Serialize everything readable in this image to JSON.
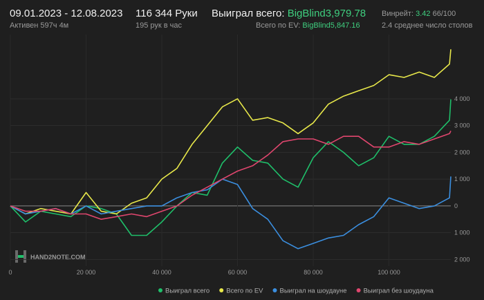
{
  "header": {
    "period": "09.01.2023 - 12.08.2023",
    "active": "Активен 597ч 4м",
    "hands": "116 344 Руки",
    "hands_per_hour": "195 рук в час",
    "won_label": "Выиграл всего:",
    "won_value": "BigBlind3,979.78",
    "ev_label": "Всего по EV:",
    "ev_value": "BigBlind5,847.16",
    "winrate_label": "Винрейт:",
    "winrate_value": "3.42",
    "winrate_unit": "66/100",
    "tables": "2.4 среднее число столов"
  },
  "chart_data": {
    "type": "line",
    "watermark": "HAND2NOTE.COM",
    "x": [
      0,
      4000,
      8000,
      12000,
      16000,
      20000,
      24000,
      28000,
      32000,
      36000,
      40000,
      44000,
      48000,
      52000,
      56000,
      60000,
      64000,
      68000,
      72000,
      76000,
      80000,
      84000,
      88000,
      92000,
      96000,
      100000,
      104000,
      108000,
      112000,
      116000,
      116344
    ],
    "xlim": [
      0,
      116344
    ],
    "xticks": [
      0,
      {
        "value": 20000,
        "label": "20 000"
      },
      {
        "value": 40000,
        "label": "40 000"
      },
      {
        "value": 60000,
        "label": "60 000"
      },
      {
        "value": 80000,
        "label": "80 000"
      },
      {
        "value": 100000,
        "label": "100 000"
      }
    ],
    "ylim": [
      -2250,
      6400
    ],
    "yticks": [
      {
        "value": -2000,
        "label": "2 000"
      },
      {
        "value": -1000,
        "label": "1 000"
      },
      0,
      {
        "value": 1000,
        "label": "1 000"
      },
      {
        "value": 2000,
        "label": "2 000"
      },
      {
        "value": 3000,
        "label": "3 000"
      },
      {
        "value": 4000,
        "label": "4 000"
      }
    ],
    "grid": true,
    "series": [
      {
        "name": "Выиграл всего",
        "color": "#1fbf6a",
        "values": [
          0,
          -600,
          -200,
          -300,
          -400,
          0,
          -100,
          -300,
          -1100,
          -1100,
          -600,
          0,
          500,
          400,
          1600,
          2200,
          1700,
          1600,
          1000,
          700,
          1800,
          2400,
          2000,
          1500,
          1800,
          2600,
          2300,
          2300,
          2600,
          3200,
          3980
        ]
      },
      {
        "name": "Всего по EV",
        "color": "#e8e84a",
        "values": [
          0,
          -300,
          -100,
          -200,
          -300,
          500,
          -200,
          -300,
          100,
          300,
          1000,
          1400,
          2300,
          3000,
          3700,
          4000,
          3200,
          3300,
          3100,
          2700,
          3100,
          3800,
          4100,
          4300,
          4500,
          4900,
          4800,
          5000,
          4800,
          5300,
          5850
        ]
      },
      {
        "name": "Выиграл на шоудауне",
        "color": "#3b8fe0",
        "values": [
          0,
          -300,
          -200,
          -100,
          -300,
          0,
          -300,
          -200,
          -100,
          0,
          0,
          300,
          500,
          600,
          1000,
          800,
          -100,
          -500,
          -1300,
          -1600,
          -1400,
          -1200,
          -1100,
          -700,
          -400,
          300,
          100,
          -100,
          0,
          300,
          1100
        ]
      },
      {
        "name": "Выиграл без шоудауна",
        "color": "#e0466e",
        "values": [
          0,
          -200,
          -200,
          -100,
          -300,
          -300,
          -500,
          -400,
          -300,
          -400,
          -200,
          0,
          400,
          700,
          1000,
          1300,
          1500,
          1900,
          2400,
          2500,
          2500,
          2300,
          2600,
          2600,
          2200,
          2200,
          2400,
          2300,
          2500,
          2700,
          2800
        ]
      }
    ]
  }
}
